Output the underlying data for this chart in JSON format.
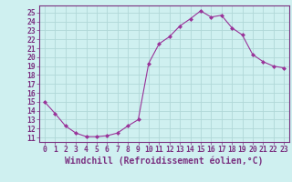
{
  "x": [
    0,
    1,
    2,
    3,
    4,
    5,
    6,
    7,
    8,
    9,
    10,
    11,
    12,
    13,
    14,
    15,
    16,
    17,
    18,
    19,
    20,
    21,
    22,
    23
  ],
  "y": [
    15.0,
    13.7,
    12.3,
    11.5,
    11.1,
    11.1,
    11.2,
    11.5,
    12.3,
    13.0,
    19.3,
    21.5,
    22.3,
    23.5,
    24.3,
    25.2,
    24.5,
    24.7,
    23.3,
    22.5,
    20.3,
    19.5,
    19.0,
    18.8
  ],
  "line_color": "#993399",
  "marker": "D",
  "marker_size": 2,
  "bg_color": "#cff0f0",
  "grid_color": "#b0d8d8",
  "axis_color": "#7a3080",
  "xlabel": "Windchill (Refroidissement éolien,°C)",
  "ylim": [
    10.5,
    25.8
  ],
  "xlim": [
    -0.5,
    23.5
  ],
  "yticks": [
    11,
    12,
    13,
    14,
    15,
    16,
    17,
    18,
    19,
    20,
    21,
    22,
    23,
    24,
    25
  ],
  "xticks": [
    0,
    1,
    2,
    3,
    4,
    5,
    6,
    7,
    8,
    9,
    10,
    11,
    12,
    13,
    14,
    15,
    16,
    17,
    18,
    19,
    20,
    21,
    22,
    23
  ],
  "tick_fontsize": 5.8,
  "xlabel_fontsize": 7.0
}
